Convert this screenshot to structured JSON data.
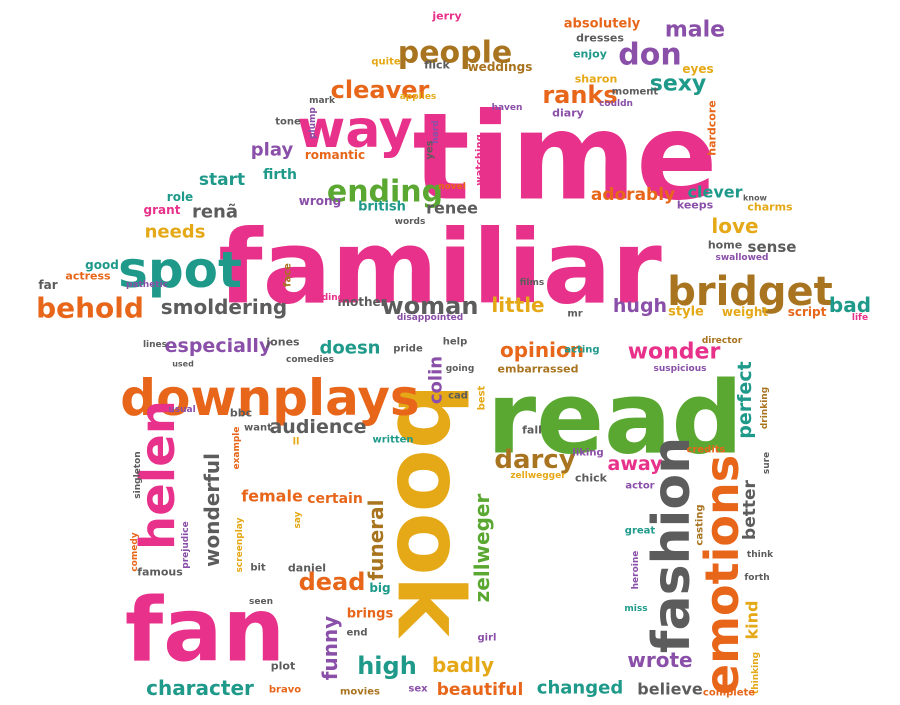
{
  "palette": {
    "pink": "#e8318a",
    "green": "#5aa832",
    "orange": "#e7661a",
    "gold": "#e5a816",
    "teal": "#1f9a8a",
    "purple": "#8a4fa8",
    "gray": "#5c5c5c",
    "brown": "#a87420"
  },
  "words": [
    {
      "id": "time",
      "text": "time",
      "color": "pink"
    },
    {
      "id": "familiar",
      "text": "familiar",
      "color": "pink"
    },
    {
      "id": "read",
      "text": "read",
      "color": "green"
    },
    {
      "id": "book",
      "text": "book",
      "color": "gold"
    },
    {
      "id": "fan",
      "text": "fan",
      "color": "pink"
    },
    {
      "id": "downplays",
      "text": "downplays",
      "color": "orange"
    },
    {
      "id": "helen",
      "text": "helen",
      "color": "pink"
    },
    {
      "id": "fashion",
      "text": "fashion",
      "color": "gray"
    },
    {
      "id": "emotions",
      "text": "emotions",
      "color": "orange"
    },
    {
      "id": "bridget",
      "text": "bridget",
      "color": "brown"
    },
    {
      "id": "way",
      "text": "way",
      "color": "pink"
    },
    {
      "id": "spot",
      "text": "spot",
      "color": "teal"
    },
    {
      "id": "ending",
      "text": "ending",
      "color": "green"
    },
    {
      "id": "people",
      "text": "people",
      "color": "brown"
    },
    {
      "id": "don",
      "text": "don",
      "color": "purple"
    },
    {
      "id": "behold",
      "text": "behold",
      "color": "orange"
    },
    {
      "id": "cleaver",
      "text": "cleaver",
      "color": "orange"
    },
    {
      "id": "ranks",
      "text": "ranks",
      "color": "orange"
    },
    {
      "id": "sexy",
      "text": "sexy",
      "color": "teal"
    },
    {
      "id": "male",
      "text": "male",
      "color": "purple"
    },
    {
      "id": "smoldering",
      "text": "smoldering",
      "color": "gray"
    },
    {
      "id": "woman",
      "text": "woman",
      "color": "gray"
    },
    {
      "id": "little",
      "text": "little",
      "color": "gold"
    },
    {
      "id": "hugh",
      "text": "hugh",
      "color": "purple"
    },
    {
      "id": "bad",
      "text": "bad",
      "color": "teal"
    },
    {
      "id": "love",
      "text": "love",
      "color": "gold"
    },
    {
      "id": "sense",
      "text": "sense",
      "color": "gray"
    },
    {
      "id": "adorably",
      "text": "adorably",
      "color": "orange"
    },
    {
      "id": "clever",
      "text": "clever",
      "color": "teal"
    },
    {
      "id": "needs",
      "text": "needs",
      "color": "gold"
    },
    {
      "id": "start",
      "text": "start",
      "color": "teal"
    },
    {
      "id": "play",
      "text": "play",
      "color": "purple"
    },
    {
      "id": "renee",
      "text": "renee",
      "color": "gray"
    },
    {
      "id": "rena",
      "text": "renã",
      "color": "gray"
    },
    {
      "id": "firth",
      "text": "firth",
      "color": "teal"
    },
    {
      "id": "romantic",
      "text": "romantic",
      "color": "orange"
    },
    {
      "id": "british",
      "text": "british",
      "color": "teal"
    },
    {
      "id": "wrong",
      "text": "wrong",
      "color": "purple"
    },
    {
      "id": "grant",
      "text": "grant",
      "color": "pink"
    },
    {
      "id": "role",
      "text": "role",
      "color": "teal"
    },
    {
      "id": "good",
      "text": "good",
      "color": "teal"
    },
    {
      "id": "actress",
      "text": "actress",
      "color": "orange"
    },
    {
      "id": "far",
      "text": "far",
      "color": "gray"
    },
    {
      "id": "pathetic",
      "text": "pathetic",
      "color": "purple"
    },
    {
      "id": "face",
      "text": "face",
      "color": "brown"
    },
    {
      "id": "mother",
      "text": "mother",
      "color": "gray"
    },
    {
      "id": "fielding",
      "text": "fielding",
      "color": "pink"
    },
    {
      "id": "disappointed",
      "text": "disappointed",
      "color": "purple"
    },
    {
      "id": "films",
      "text": "films",
      "color": "gray"
    },
    {
      "id": "mr",
      "text": "mr",
      "color": "gray"
    },
    {
      "id": "style",
      "text": "style",
      "color": "gold"
    },
    {
      "id": "weight",
      "text": "weight",
      "color": "gold"
    },
    {
      "id": "script",
      "text": "script",
      "color": "orange"
    },
    {
      "id": "life",
      "text": "life",
      "color": "pink"
    },
    {
      "id": "home",
      "text": "home",
      "color": "gray"
    },
    {
      "id": "swallowed",
      "text": "swallowed",
      "color": "purple"
    },
    {
      "id": "charms",
      "text": "charms",
      "color": "gold"
    },
    {
      "id": "keeps",
      "text": "keeps",
      "color": "purple"
    },
    {
      "id": "know",
      "text": "know",
      "color": "gray"
    },
    {
      "id": "hardcore",
      "text": "hardcore",
      "color": "orange"
    },
    {
      "id": "jerry",
      "text": "jerry",
      "color": "pink"
    },
    {
      "id": "absolutely",
      "text": "absolutely",
      "color": "orange"
    },
    {
      "id": "dresses",
      "text": "dresses",
      "color": "gray"
    },
    {
      "id": "eyes",
      "text": "eyes",
      "color": "gold"
    },
    {
      "id": "enjoy",
      "text": "enjoy",
      "color": "teal"
    },
    {
      "id": "sharon",
      "text": "sharon",
      "color": "gold"
    },
    {
      "id": "moment",
      "text": "moment",
      "color": "gray"
    },
    {
      "id": "couldn",
      "text": "couldn",
      "color": "purple"
    },
    {
      "id": "quite",
      "text": "quite",
      "color": "gold"
    },
    {
      "id": "flick",
      "text": "flick",
      "color": "gray"
    },
    {
      "id": "weddings",
      "text": "weddings",
      "color": "brown"
    },
    {
      "id": "haven",
      "text": "haven",
      "color": "purple"
    },
    {
      "id": "diary",
      "text": "diary",
      "color": "purple"
    },
    {
      "id": "applies",
      "text": "applies",
      "color": "gold"
    },
    {
      "id": "mark",
      "text": "mark",
      "color": "gray"
    },
    {
      "id": "tone",
      "text": "tone",
      "color": "gray"
    },
    {
      "id": "plump",
      "text": "plump",
      "color": "purple"
    },
    {
      "id": "hard",
      "text": "hard",
      "color": "purple"
    },
    {
      "id": "yes",
      "text": "yes",
      "color": "gray"
    },
    {
      "id": "watching",
      "text": "watching",
      "color": "pink"
    },
    {
      "id": "novel",
      "text": "novel",
      "color": "orange"
    },
    {
      "id": "words",
      "text": "words",
      "color": "gray"
    },
    {
      "id": "especially",
      "text": "especially",
      "color": "purple"
    },
    {
      "id": "jones",
      "text": "jones",
      "color": "gray"
    },
    {
      "id": "lines",
      "text": "lines",
      "color": "gray"
    },
    {
      "id": "used",
      "text": "used",
      "color": "gray"
    },
    {
      "id": "comedies",
      "text": "comedies",
      "color": "gray"
    },
    {
      "id": "doesn",
      "text": "doesn",
      "color": "teal"
    },
    {
      "id": "pride",
      "text": "pride",
      "color": "gray"
    },
    {
      "id": "help",
      "text": "help",
      "color": "gray"
    },
    {
      "id": "going",
      "text": "going",
      "color": "gray"
    },
    {
      "id": "opinion",
      "text": "opinion",
      "color": "orange"
    },
    {
      "id": "acting",
      "text": "acting",
      "color": "teal"
    },
    {
      "id": "embarrassed",
      "text": "embarrassed",
      "color": "brown"
    },
    {
      "id": "wonder",
      "text": "wonder",
      "color": "pink"
    },
    {
      "id": "director",
      "text": "director",
      "color": "brown"
    },
    {
      "id": "suspicious",
      "text": "suspicious",
      "color": "purple"
    },
    {
      "id": "perfect",
      "text": "perfect",
      "color": "teal"
    },
    {
      "id": "drinking",
      "text": "drinking",
      "color": "brown"
    },
    {
      "id": "colin",
      "text": "colin",
      "color": "purple"
    },
    {
      "id": "best",
      "text": "best",
      "color": "gold"
    },
    {
      "id": "cad",
      "text": "cad",
      "color": "gray"
    },
    {
      "id": "audience",
      "text": "audience",
      "color": "gray"
    },
    {
      "id": "want",
      "text": "want",
      "color": "gray"
    },
    {
      "id": "bbc",
      "text": "bbc",
      "color": "gray"
    },
    {
      "id": "usual",
      "text": "usual",
      "color": "purple"
    },
    {
      "id": "ll",
      "text": "ll",
      "color": "gold"
    },
    {
      "id": "written",
      "text": "written",
      "color": "teal"
    },
    {
      "id": "fall",
      "text": "fall",
      "color": "gray"
    },
    {
      "id": "darcy",
      "text": "darcy",
      "color": "brown"
    },
    {
      "id": "liking",
      "text": "liking",
      "color": "purple"
    },
    {
      "id": "credits",
      "text": "credits",
      "color": "orange"
    },
    {
      "id": "away",
      "text": "away",
      "color": "pink"
    },
    {
      "id": "chick",
      "text": "chick",
      "color": "gray"
    },
    {
      "id": "zellwegger",
      "text": "zellwegger",
      "color": "gold"
    },
    {
      "id": "actor",
      "text": "actor",
      "color": "purple"
    },
    {
      "id": "better",
      "text": "better",
      "color": "gray"
    },
    {
      "id": "sure",
      "text": "sure",
      "color": "gray"
    },
    {
      "id": "example",
      "text": "example",
      "color": "orange"
    },
    {
      "id": "singleton",
      "text": "singleton",
      "color": "gray"
    },
    {
      "id": "comedy",
      "text": "comedy",
      "color": "orange"
    },
    {
      "id": "wonderful",
      "text": "wonderful",
      "color": "gray"
    },
    {
      "id": "female",
      "text": "female",
      "color": "orange"
    },
    {
      "id": "certain",
      "text": "certain",
      "color": "orange"
    },
    {
      "id": "say",
      "text": "say",
      "color": "gold"
    },
    {
      "id": "prejudice",
      "text": "prejudice",
      "color": "purple"
    },
    {
      "id": "screenplay",
      "text": "screenplay",
      "color": "gold"
    },
    {
      "id": "funeral",
      "text": "funeral",
      "color": "brown"
    },
    {
      "id": "zellweger",
      "text": "zellweger",
      "color": "green"
    },
    {
      "id": "casting",
      "text": "casting",
      "color": "brown"
    },
    {
      "id": "great",
      "text": "great",
      "color": "teal"
    },
    {
      "id": "think",
      "text": "think",
      "color": "gray"
    },
    {
      "id": "forth",
      "text": "forth",
      "color": "gray"
    },
    {
      "id": "famous",
      "text": "famous",
      "color": "gray"
    },
    {
      "id": "bit",
      "text": "bit",
      "color": "gray"
    },
    {
      "id": "daniel",
      "text": "daniel",
      "color": "gray"
    },
    {
      "id": "dead",
      "text": "dead",
      "color": "orange"
    },
    {
      "id": "big",
      "text": "big",
      "color": "teal"
    },
    {
      "id": "seen",
      "text": "seen",
      "color": "gray"
    },
    {
      "id": "brings",
      "text": "brings",
      "color": "orange"
    },
    {
      "id": "heroine",
      "text": "heroine",
      "color": "purple"
    },
    {
      "id": "miss",
      "text": "miss",
      "color": "teal"
    },
    {
      "id": "kind",
      "text": "kind",
      "color": "gold"
    },
    {
      "id": "end",
      "text": "end",
      "color": "gray"
    },
    {
      "id": "girl",
      "text": "girl",
      "color": "purple"
    },
    {
      "id": "funny",
      "text": "funny",
      "color": "purple"
    },
    {
      "id": "high",
      "text": "high",
      "color": "teal"
    },
    {
      "id": "badly",
      "text": "badly",
      "color": "gold"
    },
    {
      "id": "wrote",
      "text": "wrote",
      "color": "purple"
    },
    {
      "id": "thinking",
      "text": "thinking",
      "color": "gold"
    },
    {
      "id": "plot",
      "text": "plot",
      "color": "gray"
    },
    {
      "id": "character",
      "text": "character",
      "color": "teal"
    },
    {
      "id": "bravo",
      "text": "bravo",
      "color": "orange"
    },
    {
      "id": "movies",
      "text": "movies",
      "color": "brown"
    },
    {
      "id": "sex",
      "text": "sex",
      "color": "purple"
    },
    {
      "id": "beautiful",
      "text": "beautiful",
      "color": "orange"
    },
    {
      "id": "changed",
      "text": "changed",
      "color": "teal"
    },
    {
      "id": "believe",
      "text": "believe",
      "color": "gray"
    },
    {
      "id": "complete",
      "text": "complete",
      "color": "orange"
    }
  ]
}
